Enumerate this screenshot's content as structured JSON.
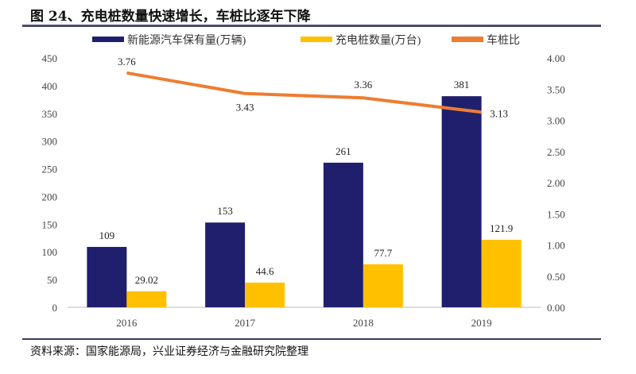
{
  "header": {
    "title": "图 24、充电桩数量快速增长，车桩比逐年下降"
  },
  "footer": {
    "source": "资料来源：国家能源局，兴业证券经济与金融研究院整理"
  },
  "chart_data": {
    "type": "bar",
    "categories": [
      "2016",
      "2017",
      "2018",
      "2019"
    ],
    "series": [
      {
        "name": "新能源汽车保有量(万辆)",
        "type": "bar",
        "axis": "left",
        "color": "#1f1f6e",
        "values": [
          109,
          153,
          261,
          381
        ],
        "labels": [
          "109",
          "153",
          "261",
          "381"
        ]
      },
      {
        "name": "充电桩数量(万台)",
        "type": "bar",
        "axis": "left",
        "color": "#ffc000",
        "values": [
          29.02,
          44.6,
          77.7,
          121.9
        ],
        "labels": [
          "29.02",
          "44.6",
          "77.7",
          "121.9"
        ]
      },
      {
        "name": "车桩比",
        "type": "line",
        "axis": "right",
        "color": "#ed7d31",
        "values": [
          3.76,
          3.43,
          3.36,
          3.13
        ],
        "labels": [
          "3.76",
          "3.43",
          "3.36",
          "3.13"
        ]
      }
    ],
    "left_axis": {
      "ylim": [
        0,
        450
      ],
      "ticks": [
        "0",
        "50",
        "100",
        "150",
        "200",
        "250",
        "300",
        "350",
        "400",
        "450"
      ]
    },
    "right_axis": {
      "ylim": [
        0,
        4
      ],
      "ticks": [
        "0.00",
        "0.50",
        "1.00",
        "1.50",
        "2.00",
        "2.50",
        "3.00",
        "3.50",
        "4.00"
      ]
    },
    "grid": false,
    "legend": "top"
  }
}
